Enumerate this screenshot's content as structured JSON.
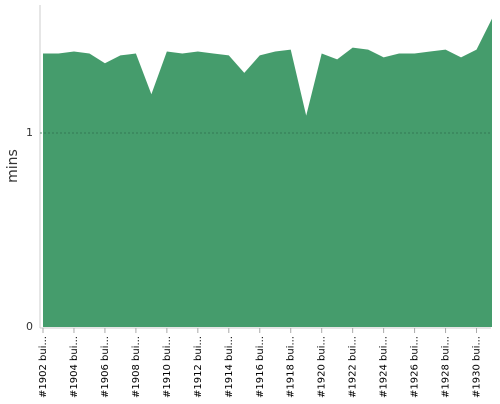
{
  "chart_data": {
    "type": "area",
    "y_label": "mins",
    "categories": [
      "#1902 bui...",
      null,
      "#1904 bui...",
      null,
      "#1906 bui...",
      null,
      "#1908 bui...",
      null,
      "#1910 bui...",
      null,
      "#1912 bui...",
      null,
      "#1914 bui...",
      null,
      "#1916 bui...",
      null,
      "#1918 bui...",
      null,
      "#1920 bui...",
      null,
      "#1922 bui...",
      null,
      "#1924 bui...",
      null,
      "#1926 bui...",
      null,
      "#1928 bui...",
      null,
      "#1930 bui...",
      null
    ],
    "values": [
      1.41,
      1.41,
      1.42,
      1.41,
      1.36,
      1.4,
      1.41,
      1.2,
      1.42,
      1.41,
      1.42,
      1.41,
      1.4,
      1.31,
      1.4,
      1.42,
      1.43,
      1.09,
      1.41,
      1.38,
      1.44,
      1.43,
      1.39,
      1.41,
      1.41,
      1.42,
      1.43,
      1.39,
      1.43,
      1.59
    ],
    "color": "#459c6c",
    "ylim": [
      0,
      1.66
    ],
    "yticks": [
      0,
      1
    ],
    "grid": true
  }
}
